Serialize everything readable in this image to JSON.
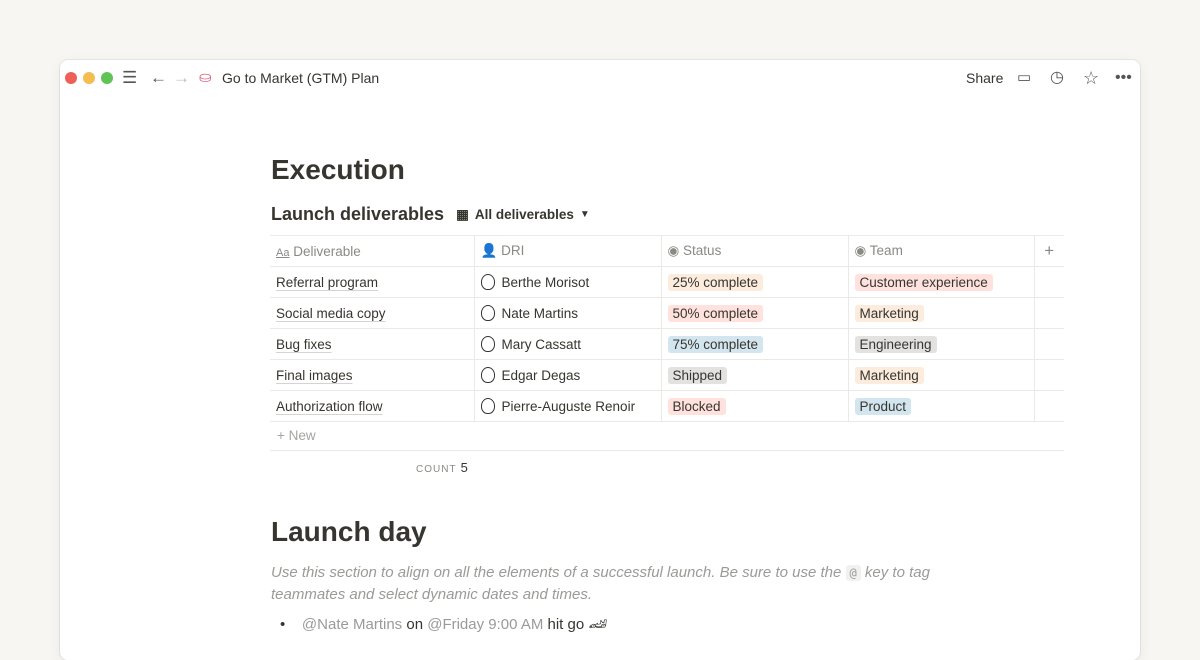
{
  "window": {
    "title": "Go to Market (GTM) Plan",
    "page_icon": "cake-icon",
    "share": "Share",
    "traffic_colors": [
      "#ee5f57",
      "#f5bd4f",
      "#5fc454"
    ]
  },
  "page": {
    "heading": "Execution",
    "database_title": "Launch deliverables",
    "view_name": "All deliverables",
    "columns": [
      "Deliverable",
      "DRI",
      "Status",
      "Team"
    ],
    "rows": [
      {
        "deliverable": "Referral program",
        "dri": "Berthe Morisot",
        "status": "25% complete",
        "status_color": "#fbecdd",
        "team": "Customer experience",
        "team_color": "#ffe2dd"
      },
      {
        "deliverable": "Social media copy",
        "dri": "Nate Martins",
        "status": "50% complete",
        "status_color": "#ffe2dd",
        "team": "Marketing",
        "team_color": "#fbecdd"
      },
      {
        "deliverable": "Bug fixes",
        "dri": "Mary Cassatt",
        "status": "75% complete",
        "status_color": "#d3e5ef",
        "team": "Engineering",
        "team_color": "#e3e2e0"
      },
      {
        "deliverable": "Final images",
        "dri": "Edgar Degas",
        "status": "Shipped",
        "status_color": "#e3e2e0",
        "team": "Marketing",
        "team_color": "#fbecdd"
      },
      {
        "deliverable": "Authorization flow",
        "dri": "Pierre-Auguste Renoir",
        "status": "Blocked",
        "status_color": "#ffe2dd",
        "team": "Product",
        "team_color": "#d3e5ef"
      }
    ],
    "new_label": "New",
    "count_label": "COUNT",
    "count": "5",
    "section2": "Launch day",
    "desc_before": "Use this section to align on all the elements of a successful launch. Be sure to use the",
    "desc_key": "@",
    "desc_after": "key to tag teammates and select dynamic dates and times.",
    "bullet": {
      "mention": "@Nate Martins",
      "on": "on",
      "date": "@Friday 9:00 AM",
      "text": "hit go",
      "emoji": "🏎"
    }
  }
}
